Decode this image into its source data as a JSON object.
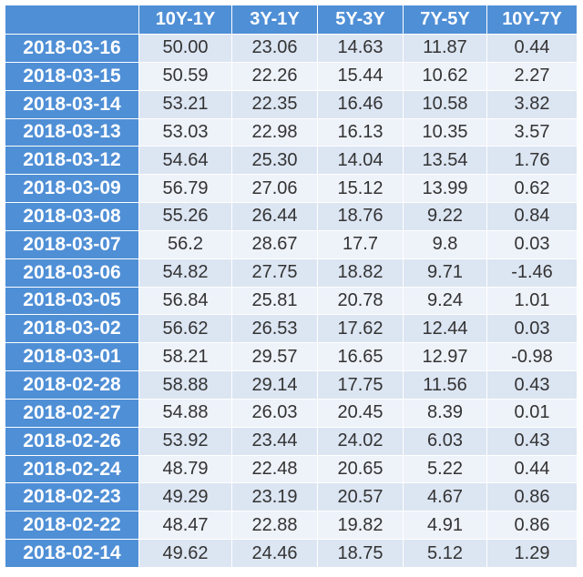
{
  "table": {
    "columns": [
      "10Y-1Y",
      "3Y-1Y",
      "5Y-3Y",
      "7Y-5Y",
      "10Y-7Y"
    ],
    "rows": [
      [
        "2018-03-16",
        "50.00",
        "23.06",
        "14.63",
        "11.87",
        "0.44"
      ],
      [
        "2018-03-15",
        "50.59",
        "22.26",
        "15.44",
        "10.62",
        "2.27"
      ],
      [
        "2018-03-14",
        "53.21",
        "22.35",
        "16.46",
        "10.58",
        "3.82"
      ],
      [
        "2018-03-13",
        "53.03",
        "22.98",
        "16.13",
        "10.35",
        "3.57"
      ],
      [
        "2018-03-12",
        "54.64",
        "25.30",
        "14.04",
        "13.54",
        "1.76"
      ],
      [
        "2018-03-09",
        "56.79",
        "27.06",
        "15.12",
        "13.99",
        "0.62"
      ],
      [
        "2018-03-08",
        "55.26",
        "26.44",
        "18.76",
        "9.22",
        "0.84"
      ],
      [
        "2018-03-07",
        "56.2",
        "28.67",
        "17.7",
        "9.8",
        "0.03"
      ],
      [
        "2018-03-06",
        "54.82",
        "27.75",
        "18.82",
        "9.71",
        "-1.46"
      ],
      [
        "2018-03-05",
        "56.84",
        "25.81",
        "20.78",
        "9.24",
        "1.01"
      ],
      [
        "2018-03-02",
        "56.62",
        "26.53",
        "17.62",
        "12.44",
        "0.03"
      ],
      [
        "2018-03-01",
        "58.21",
        "29.57",
        "16.65",
        "12.97",
        "-0.98"
      ],
      [
        "2018-02-28",
        "58.88",
        "29.14",
        "17.75",
        "11.56",
        "0.43"
      ],
      [
        "2018-02-27",
        "54.88",
        "26.03",
        "20.45",
        "8.39",
        "0.01"
      ],
      [
        "2018-02-26",
        "53.92",
        "23.44",
        "24.02",
        "6.03",
        "0.43"
      ],
      [
        "2018-02-24",
        "48.79",
        "22.48",
        "20.65",
        "5.22",
        "0.44"
      ],
      [
        "2018-02-23",
        "49.29",
        "23.19",
        "20.57",
        "4.67",
        "0.86"
      ],
      [
        "2018-02-22",
        "48.47",
        "22.88",
        "19.82",
        "4.91",
        "0.86"
      ],
      [
        "2018-02-14",
        "49.62",
        "24.46",
        "18.75",
        "5.12",
        "1.29"
      ]
    ]
  }
}
